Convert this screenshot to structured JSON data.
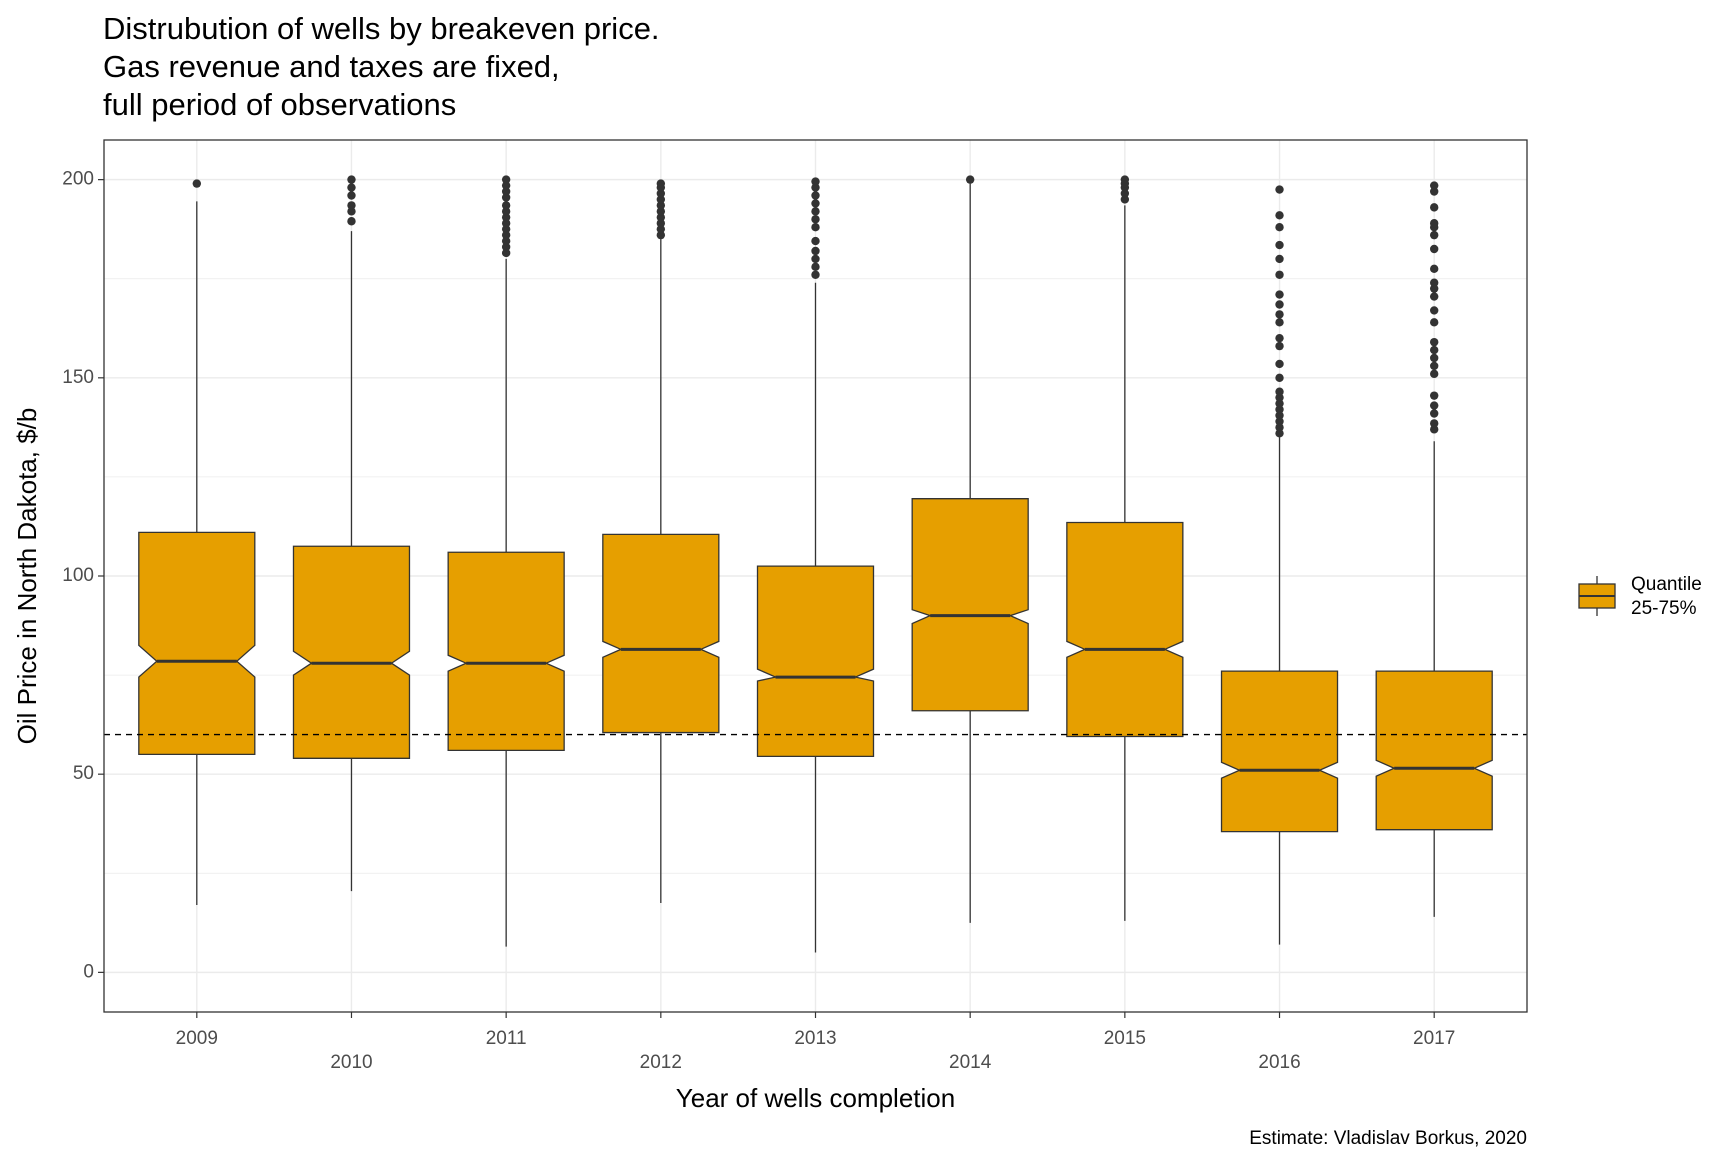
{
  "chart_data": {
    "type": "boxplot",
    "title_lines": [
      "Distrubution of wells by breakeven price.",
      "Gas revenue and taxes are fixed,",
      "full period of observations"
    ],
    "xlabel": "Year of wells completion",
    "ylabel": "Oil Price in North Dakota, $/b",
    "caption": "Estimate: Vladislav Borkus, 2020",
    "ylim": [
      -10,
      210
    ],
    "yticks": [
      0,
      50,
      100,
      150,
      200
    ],
    "reference_line": 60,
    "grid": true,
    "notched": true,
    "box_color": "#E69F00",
    "legend": {
      "position": "right",
      "title": "",
      "label": "Quantile\n25-75%"
    },
    "categories": [
      "2009",
      "2010",
      "2011",
      "2012",
      "2013",
      "2014",
      "2015",
      "2016",
      "2017"
    ],
    "boxes": [
      {
        "year": "2009",
        "min": 17,
        "q1": 55,
        "median": 78.5,
        "q3": 111,
        "max": 194.5,
        "notch_low": 74.5,
        "notch_high": 82.5,
        "outliers": [
          199
        ]
      },
      {
        "year": "2010",
        "min": 20.5,
        "q1": 54,
        "median": 78,
        "q3": 107.5,
        "max": 187,
        "notch_low": 75,
        "notch_high": 81,
        "outliers": [
          189.5,
          192,
          193.5,
          196,
          198,
          200
        ]
      },
      {
        "year": "2011",
        "min": 6.5,
        "q1": 56,
        "median": 78,
        "q3": 106,
        "max": 180,
        "notch_low": 76,
        "notch_high": 80,
        "outliers": [
          181.5,
          183,
          184.5,
          186,
          187.5,
          189,
          190.5,
          192,
          193.5,
          195.5,
          197,
          198.5,
          200
        ]
      },
      {
        "year": "2012",
        "min": 17.5,
        "q1": 60.5,
        "median": 81.5,
        "q3": 110.5,
        "max": 185,
        "notch_low": 79.5,
        "notch_high": 83.5,
        "outliers": [
          186,
          187.5,
          189,
          190.5,
          192,
          193.5,
          195,
          196.5,
          198,
          199
        ]
      },
      {
        "year": "2013",
        "min": 5,
        "q1": 54.5,
        "median": 74.5,
        "q3": 102.5,
        "max": 174,
        "notch_low": 73.5,
        "notch_high": 76.5,
        "outliers": [
          176,
          178,
          180,
          182,
          184.5,
          188,
          190,
          192,
          194,
          196,
          198,
          199.5
        ]
      },
      {
        "year": "2014",
        "min": 12.5,
        "q1": 66,
        "median": 90,
        "q3": 119.5,
        "max": 199,
        "notch_low": 88,
        "notch_high": 91.5,
        "outliers": [
          200
        ]
      },
      {
        "year": "2015",
        "min": 13,
        "q1": 59.5,
        "median": 81.5,
        "q3": 113.5,
        "max": 193.5,
        "notch_low": 79.5,
        "notch_high": 83.5,
        "outliers": [
          195,
          196.5,
          198,
          199,
          200
        ]
      },
      {
        "year": "2016",
        "min": 7,
        "q1": 35.5,
        "median": 51,
        "q3": 76,
        "max": 135,
        "notch_low": 49,
        "notch_high": 53,
        "outliers": [
          136,
          137.5,
          139,
          140.5,
          142,
          143.5,
          145,
          146.5,
          150,
          153.5,
          158,
          160,
          164,
          166,
          168.5,
          171,
          176,
          180,
          183.5,
          188,
          191,
          197.5
        ]
      },
      {
        "year": "2017",
        "min": 14,
        "q1": 36,
        "median": 51.5,
        "q3": 76,
        "max": 134,
        "notch_low": 49.5,
        "notch_high": 53.5,
        "outliers": [
          137,
          138.5,
          141,
          143,
          145.5,
          151,
          153,
          155,
          157,
          159,
          164,
          167,
          170.5,
          172.5,
          174,
          177.5,
          182.5,
          186,
          188,
          189,
          193,
          197,
          198.5
        ]
      }
    ]
  }
}
